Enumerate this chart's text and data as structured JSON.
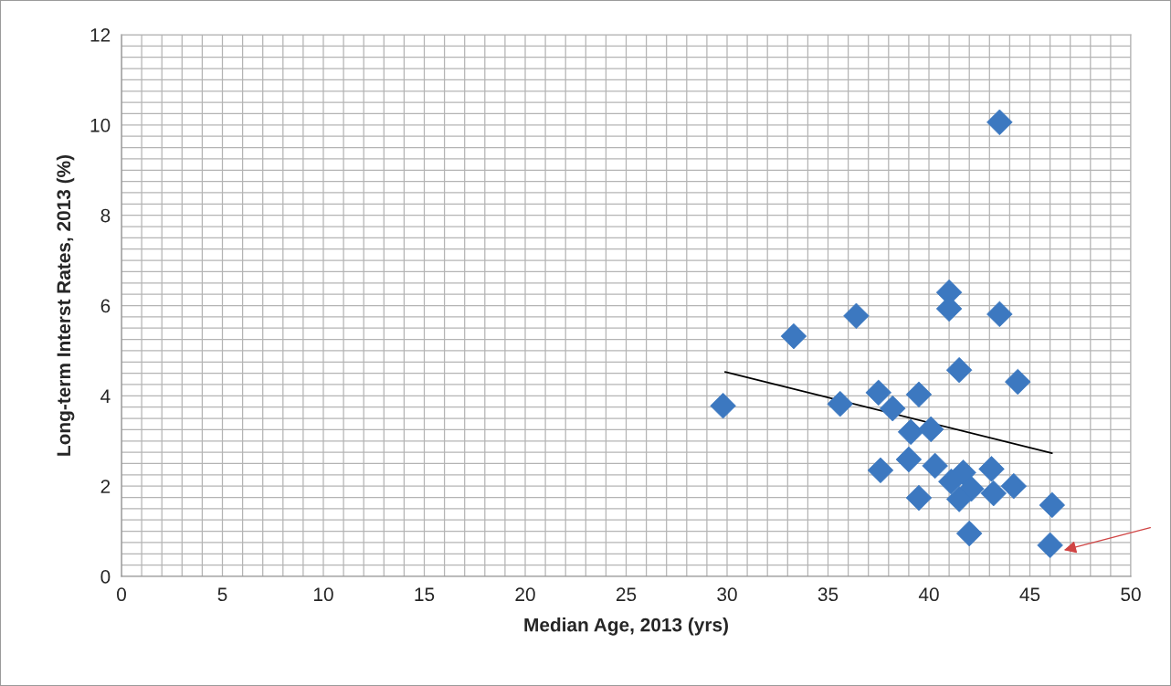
{
  "chart_data": {
    "type": "scatter",
    "xlabel": "Median Age, 2013 (yrs)",
    "ylabel": "Long-term Interst Rates, 2013 (%)",
    "xlim": [
      0,
      50
    ],
    "xticks": [
      0,
      5,
      10,
      15,
      20,
      25,
      30,
      35,
      40,
      45,
      50
    ],
    "ylim": [
      0,
      12
    ],
    "yticks": [
      0,
      2,
      4,
      6,
      8,
      10,
      12
    ],
    "grid": true,
    "marker": "diamond",
    "legend": false,
    "series": [
      {
        "color": "#3c78c0",
        "x": [
          43.5,
          41.0,
          41.0,
          36.4,
          33.3,
          43.5,
          41.5,
          44.4,
          29.8,
          35.6,
          37.5,
          39.5,
          38.2,
          39.1,
          40.1,
          39.0,
          37.6,
          40.3,
          40.9,
          41.7,
          41.1,
          42.1,
          41.5,
          43.1,
          43.2,
          44.2,
          39.5,
          42.0,
          46.1,
          46.0
        ],
        "values": [
          10.06,
          6.29,
          5.93,
          5.77,
          5.32,
          5.81,
          4.57,
          4.31,
          3.78,
          3.82,
          4.07,
          4.03,
          3.72,
          3.2,
          3.26,
          2.59,
          2.35,
          2.45,
          null,
          2.3,
          2.1,
          1.94,
          1.71,
          2.38,
          1.84,
          2.0,
          1.74,
          0.95,
          1.58,
          0.69
        ]
      },
      {
        "type": "line",
        "color": "#000000",
        "marker": "none",
        "x": [
          29.9,
          46.1
        ],
        "values": [
          4.53,
          2.73
        ]
      }
    ]
  }
}
